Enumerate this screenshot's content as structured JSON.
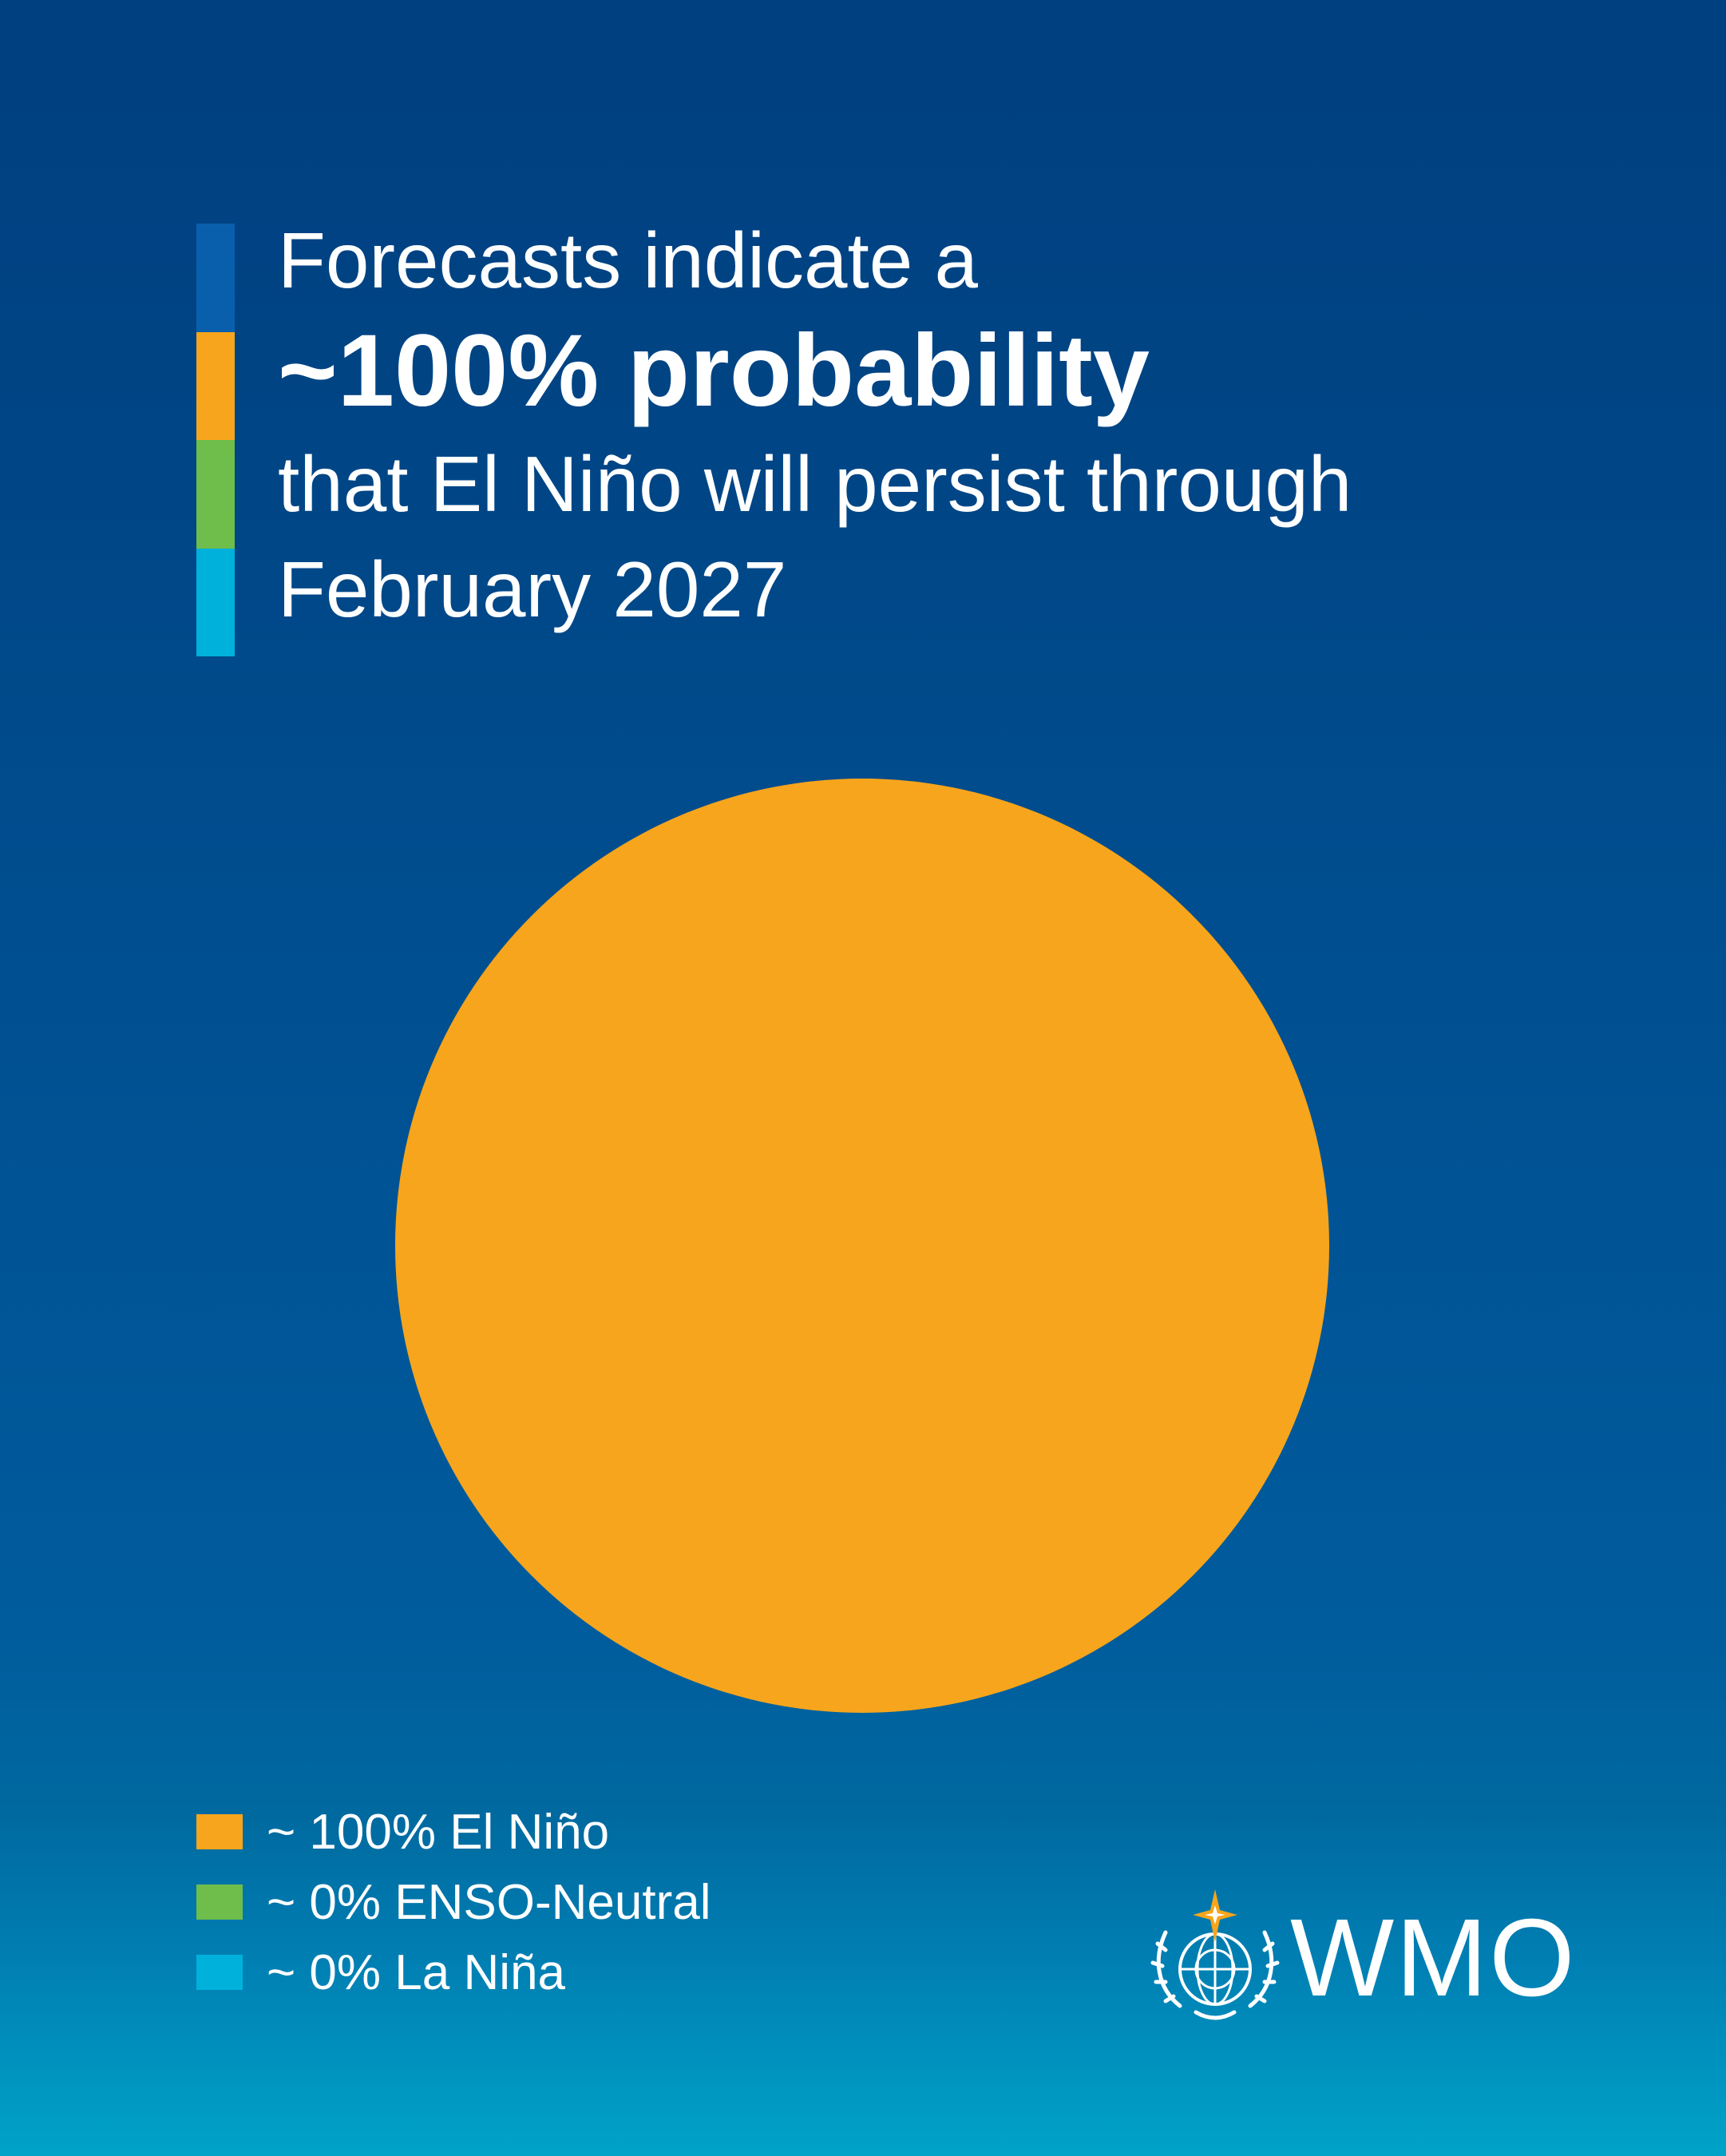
{
  "headline": {
    "line1": "Forecasts indicate a",
    "line2": "~100% probability",
    "line3": "that El Niño will persist through",
    "line4": "February 2027"
  },
  "accent_bar_colors": [
    "#0a5fad",
    "#f7a51c",
    "#6fbd4a",
    "#00b1dc"
  ],
  "chart_data": {
    "type": "pie",
    "categories": [
      "El Niño",
      "ENSO-Neutral",
      "La Niña"
    ],
    "values": [
      100,
      0,
      0
    ],
    "colors": [
      "#f7a51c",
      "#6fbd4a",
      "#00b1dc"
    ],
    "legend_placement": "bottom-left",
    "legend": [
      {
        "label": "~ 100% El Niño",
        "color": "#f7a51c"
      },
      {
        "label": "~ 0% ENSO-Neutral",
        "color": "#6fbd4a"
      },
      {
        "label": "~ 0% La Niña",
        "color": "#00b1dc"
      }
    ]
  },
  "logo": {
    "text": "WMO",
    "emblem_icon": "un-emblem-with-star-icon",
    "star_color": "#f7a51c"
  }
}
